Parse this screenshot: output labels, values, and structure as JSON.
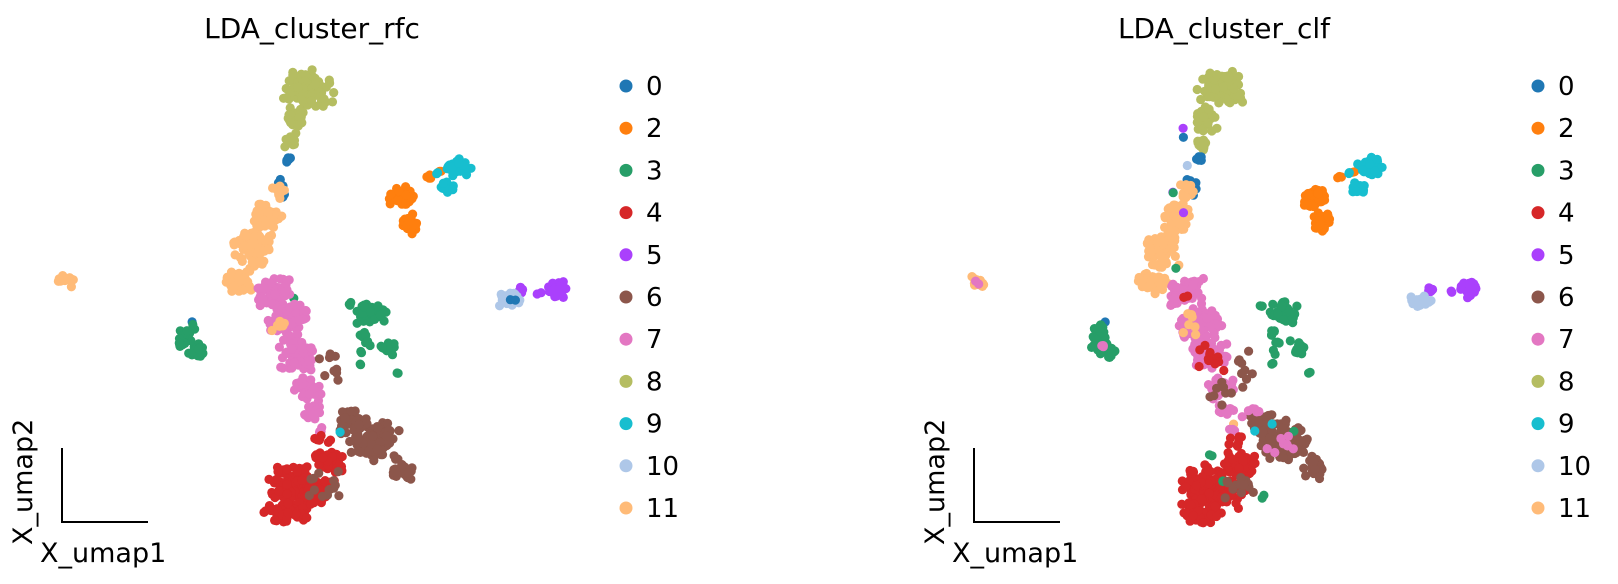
{
  "figure": {
    "background": "#ffffff",
    "text_color": "#000000"
  },
  "palette": {
    "0": "#1f77b4",
    "2": "#ff7f0e",
    "3": "#279e68",
    "4": "#d62728",
    "5": "#aa40fc",
    "6": "#8c564b",
    "7": "#e377c2",
    "8": "#b5bd61",
    "9": "#17becf",
    "10": "#aec7e8",
    "11": "#ffbb78"
  },
  "chart_data": [
    {
      "type": "scatter",
      "title": "LDA_cluster_rfc",
      "xlabel": "X_umap1",
      "ylabel": "X_umap2",
      "legend_position": "right",
      "grid": false,
      "frame": "mini-corner-axes-no-ticks",
      "legend_entries": [
        "0",
        "2",
        "3",
        "4",
        "5",
        "6",
        "7",
        "8",
        "9",
        "10",
        "11"
      ],
      "clusters": [
        {
          "label": "8",
          "color": "#b5bd61",
          "blobs": [
            [
              309,
              90,
              27,
              21,
              85
            ],
            [
              294,
              120,
              12,
              14,
              30
            ],
            [
              290,
              143,
              6,
              8,
              12
            ]
          ]
        },
        {
          "label": "0",
          "color": "#1f77b4",
          "blobs": [
            [
              287,
              158,
              4,
              5,
              6
            ],
            [
              280,
              186,
              7,
              13,
              16
            ],
            [
              193,
              322,
              2,
              2,
              1
            ],
            [
              512,
              301,
              4,
              3,
              2,
              1
            ]
          ]
        },
        {
          "label": "11",
          "color": "#ffbb78",
          "blobs": [
            [
              277,
              191,
              9,
              8,
              14
            ],
            [
              266,
              216,
              16,
              15,
              55
            ],
            [
              252,
              249,
              21,
              21,
              95
            ],
            [
              240,
              282,
              16,
              12,
              45
            ],
            [
              66,
              281,
              9,
              8,
              14
            ],
            [
              278,
              325,
              10,
              16,
              7,
              1
            ]
          ]
        },
        {
          "label": "2",
          "color": "#ff7f0e",
          "blobs": [
            [
              402,
              197,
              14,
              13,
              48
            ],
            [
              410,
              224,
              10,
              12,
              30
            ],
            [
              429,
              177,
              5,
              3,
              4
            ],
            [
              441,
              172,
              2,
              2,
              2
            ]
          ]
        },
        {
          "label": "9",
          "color": "#17becf",
          "blobs": [
            [
              459,
              166,
              14,
              11,
              42
            ],
            [
              447,
              186,
              8,
              7,
              14
            ],
            [
              437,
              173,
              2,
              2,
              2
            ],
            [
              340,
              432,
              2,
              2,
              1,
              1
            ]
          ]
        },
        {
          "label": "5",
          "color": "#aa40fc",
          "blobs": [
            [
              557,
              289,
              11,
              11,
              24
            ],
            [
              520,
              291,
              5,
              5,
              6
            ],
            [
              540,
              292,
              3,
              3,
              2
            ]
          ]
        },
        {
          "label": "10",
          "color": "#aec7e8",
          "blobs": [
            [
              509,
              300,
              14,
              9,
              30
            ]
          ]
        },
        {
          "label": "3",
          "color": "#279e68",
          "blobs": [
            [
              187,
              333,
              9,
              10,
              16
            ],
            [
              197,
              351,
              10,
              9,
              18
            ],
            [
              182,
              344,
              6,
              7,
              8
            ],
            [
              371,
              313,
              16,
              13,
              48
            ],
            [
              387,
              348,
              9,
              8,
              16
            ],
            [
              362,
              334,
              5,
              5,
              5
            ],
            [
              367,
              342,
              4,
              4,
              3
            ],
            [
              361,
              352,
              3,
              3,
              2
            ],
            [
              360,
              364,
              2,
              2,
              2
            ],
            [
              397,
              373,
              2,
              2,
              2
            ],
            [
              350,
              305,
              3,
              3,
              3
            ],
            [
              293,
              297,
              2,
              2,
              1
            ]
          ]
        },
        {
          "label": "7",
          "color": "#e377c2",
          "blobs": [
            [
              274,
              292,
              19,
              15,
              55
            ],
            [
              288,
              322,
              23,
              19,
              85
            ],
            [
              298,
              355,
              21,
              17,
              75
            ],
            [
              308,
              388,
              16,
              13,
              42
            ],
            [
              314,
              411,
              10,
              9,
              18
            ],
            [
              262,
              301,
              4,
              7,
              6
            ],
            [
              320,
              430,
              5,
              4,
              4,
              1
            ]
          ]
        },
        {
          "label": "6",
          "color": "#8c564b",
          "blobs": [
            [
              374,
              441,
              27,
              23,
              100
            ],
            [
              348,
              421,
              15,
              13,
              32
            ],
            [
              401,
              467,
              15,
              13,
              28
            ],
            [
              331,
              363,
              14,
              26,
              9,
              1
            ],
            [
              326,
              486,
              21,
              16,
              14,
              1
            ]
          ]
        },
        {
          "label": "4",
          "color": "#d62728",
          "blobs": [
            [
              302,
              487,
              35,
              25,
              150
            ],
            [
              329,
              462,
              17,
              13,
              40
            ],
            [
              288,
              513,
              25,
              11,
              45
            ],
            [
              322,
              441,
              11,
              9,
              8,
              1
            ]
          ]
        }
      ]
    },
    {
      "type": "scatter",
      "title": "LDA_cluster_clf",
      "xlabel": "X_umap1",
      "ylabel": "X_umap2",
      "legend_position": "right",
      "grid": false,
      "frame": "mini-corner-axes-no-ticks",
      "legend_entries": [
        "0",
        "2",
        "3",
        "4",
        "5",
        "6",
        "7",
        "8",
        "9",
        "10",
        "11"
      ],
      "clusters": [
        {
          "label": "8",
          "color": "#b5bd61",
          "blobs": [
            [
              309,
              90,
              27,
              21,
              85
            ],
            [
              294,
              120,
              12,
              14,
              30
            ],
            [
              290,
              143,
              6,
              8,
              12
            ]
          ]
        },
        {
          "label": "0",
          "color": "#1f77b4",
          "blobs": [
            [
              287,
              158,
              4,
              5,
              6
            ],
            [
              280,
              186,
              7,
              13,
              16
            ],
            [
              193,
              322,
              2,
              2,
              1
            ],
            [
              273,
              138,
              2,
              2,
              1,
              1
            ]
          ]
        },
        {
          "label": "11",
          "color": "#ffbb78",
          "blobs": [
            [
              277,
              191,
              9,
              8,
              14
            ],
            [
              266,
              216,
              16,
              15,
              55
            ],
            [
              252,
              249,
              21,
              21,
              95
            ],
            [
              240,
              282,
              16,
              12,
              45
            ],
            [
              66,
              281,
              9,
              8,
              14
            ],
            [
              278,
              325,
              10,
              16,
              7,
              1
            ],
            [
              320,
              423,
              2,
              2,
              1,
              1
            ]
          ]
        },
        {
          "label": "2",
          "color": "#ff7f0e",
          "blobs": [
            [
              402,
              197,
              14,
              13,
              48
            ],
            [
              410,
              224,
              10,
              12,
              30
            ],
            [
              429,
              177,
              5,
              3,
              4
            ],
            [
              441,
              172,
              2,
              2,
              2
            ]
          ]
        },
        {
          "label": "9",
          "color": "#17becf",
          "blobs": [
            [
              459,
              166,
              14,
              11,
              42
            ],
            [
              447,
              186,
              8,
              7,
              14
            ],
            [
              437,
              173,
              2,
              2,
              2
            ],
            [
              343,
              432,
              2,
              2,
              1,
              1
            ],
            [
              360,
              425,
              2,
              2,
              1,
              1
            ]
          ]
        },
        {
          "label": "5",
          "color": "#aa40fc",
          "blobs": [
            [
              557,
              289,
              11,
              11,
              24
            ],
            [
              520,
              291,
              5,
              5,
              6
            ],
            [
              540,
              292,
              3,
              3,
              2
            ],
            [
              271,
              128,
              2,
              2,
              1,
              1
            ],
            [
              260,
              192,
              2,
              2,
              1,
              1
            ],
            [
              271,
              213,
              2,
              2,
              1,
              1
            ]
          ]
        },
        {
          "label": "10",
          "color": "#aec7e8",
          "blobs": [
            [
              509,
              300,
              14,
              9,
              30
            ],
            [
              275,
              165,
              2,
              2,
              1,
              1
            ]
          ]
        },
        {
          "label": "3",
          "color": "#279e68",
          "blobs": [
            [
              187,
              333,
              9,
              10,
              16
            ],
            [
              197,
              351,
              10,
              9,
              18
            ],
            [
              182,
              344,
              6,
              7,
              8
            ],
            [
              371,
              313,
              16,
              13,
              48
            ],
            [
              387,
              348,
              9,
              8,
              16
            ],
            [
              362,
              334,
              5,
              5,
              5
            ],
            [
              367,
              342,
              4,
              4,
              3
            ],
            [
              361,
              352,
              3,
              3,
              2
            ],
            [
              360,
              364,
              2,
              2,
              2
            ],
            [
              397,
              373,
              2,
              2,
              2
            ],
            [
              350,
              305,
              3,
              3,
              3
            ],
            [
              261,
              193,
              2,
              2,
              1,
              1
            ],
            [
              265,
              270,
              2,
              2,
              1,
              1
            ],
            [
              311,
              480,
              3,
              3,
              2,
              1
            ],
            [
              350,
              498,
              4,
              3,
              2,
              1
            ],
            [
              381,
              433,
              2,
              2,
              1,
              1
            ],
            [
              299,
              455,
              3,
              3,
              2,
              1
            ]
          ]
        },
        {
          "label": "7",
          "color": "#e377c2",
          "blobs": [
            [
              274,
              292,
              19,
              15,
              55
            ],
            [
              288,
              322,
              23,
              19,
              85
            ],
            [
              298,
              355,
              21,
              17,
              75
            ],
            [
              308,
              388,
              16,
              13,
              42
            ],
            [
              314,
              411,
              10,
              9,
              18
            ],
            [
              262,
              301,
              4,
              7,
              6
            ],
            [
              320,
              430,
              5,
              4,
              4,
              1
            ],
            [
              66,
              282,
              3,
              3,
              2,
              1
            ],
            [
              191,
              345,
              4,
              4,
              3,
              1
            ],
            [
              368,
              446,
              16,
              12,
              8,
              1
            ],
            [
              340,
              410,
              12,
              10,
              6,
              1
            ]
          ]
        },
        {
          "label": "6",
          "color": "#8c564b",
          "blobs": [
            [
              374,
              441,
              27,
              23,
              100
            ],
            [
              348,
              421,
              15,
              13,
              32
            ],
            [
              401,
              467,
              15,
              13,
              28
            ],
            [
              331,
              363,
              14,
              26,
              9,
              1
            ],
            [
              326,
              486,
              21,
              16,
              14,
              1
            ],
            [
              308,
              392,
              12,
              16,
              8,
              1
            ]
          ]
        },
        {
          "label": "4",
          "color": "#d62728",
          "blobs": [
            [
              302,
              487,
              35,
              25,
              150
            ],
            [
              329,
              462,
              17,
              13,
              40
            ],
            [
              288,
              513,
              25,
              11,
              45
            ],
            [
              322,
              441,
              11,
              9,
              8,
              1
            ],
            [
              298,
              360,
              16,
              24,
              12,
              1
            ],
            [
              275,
              295,
              5,
              5,
              2,
              1
            ]
          ]
        }
      ]
    }
  ]
}
